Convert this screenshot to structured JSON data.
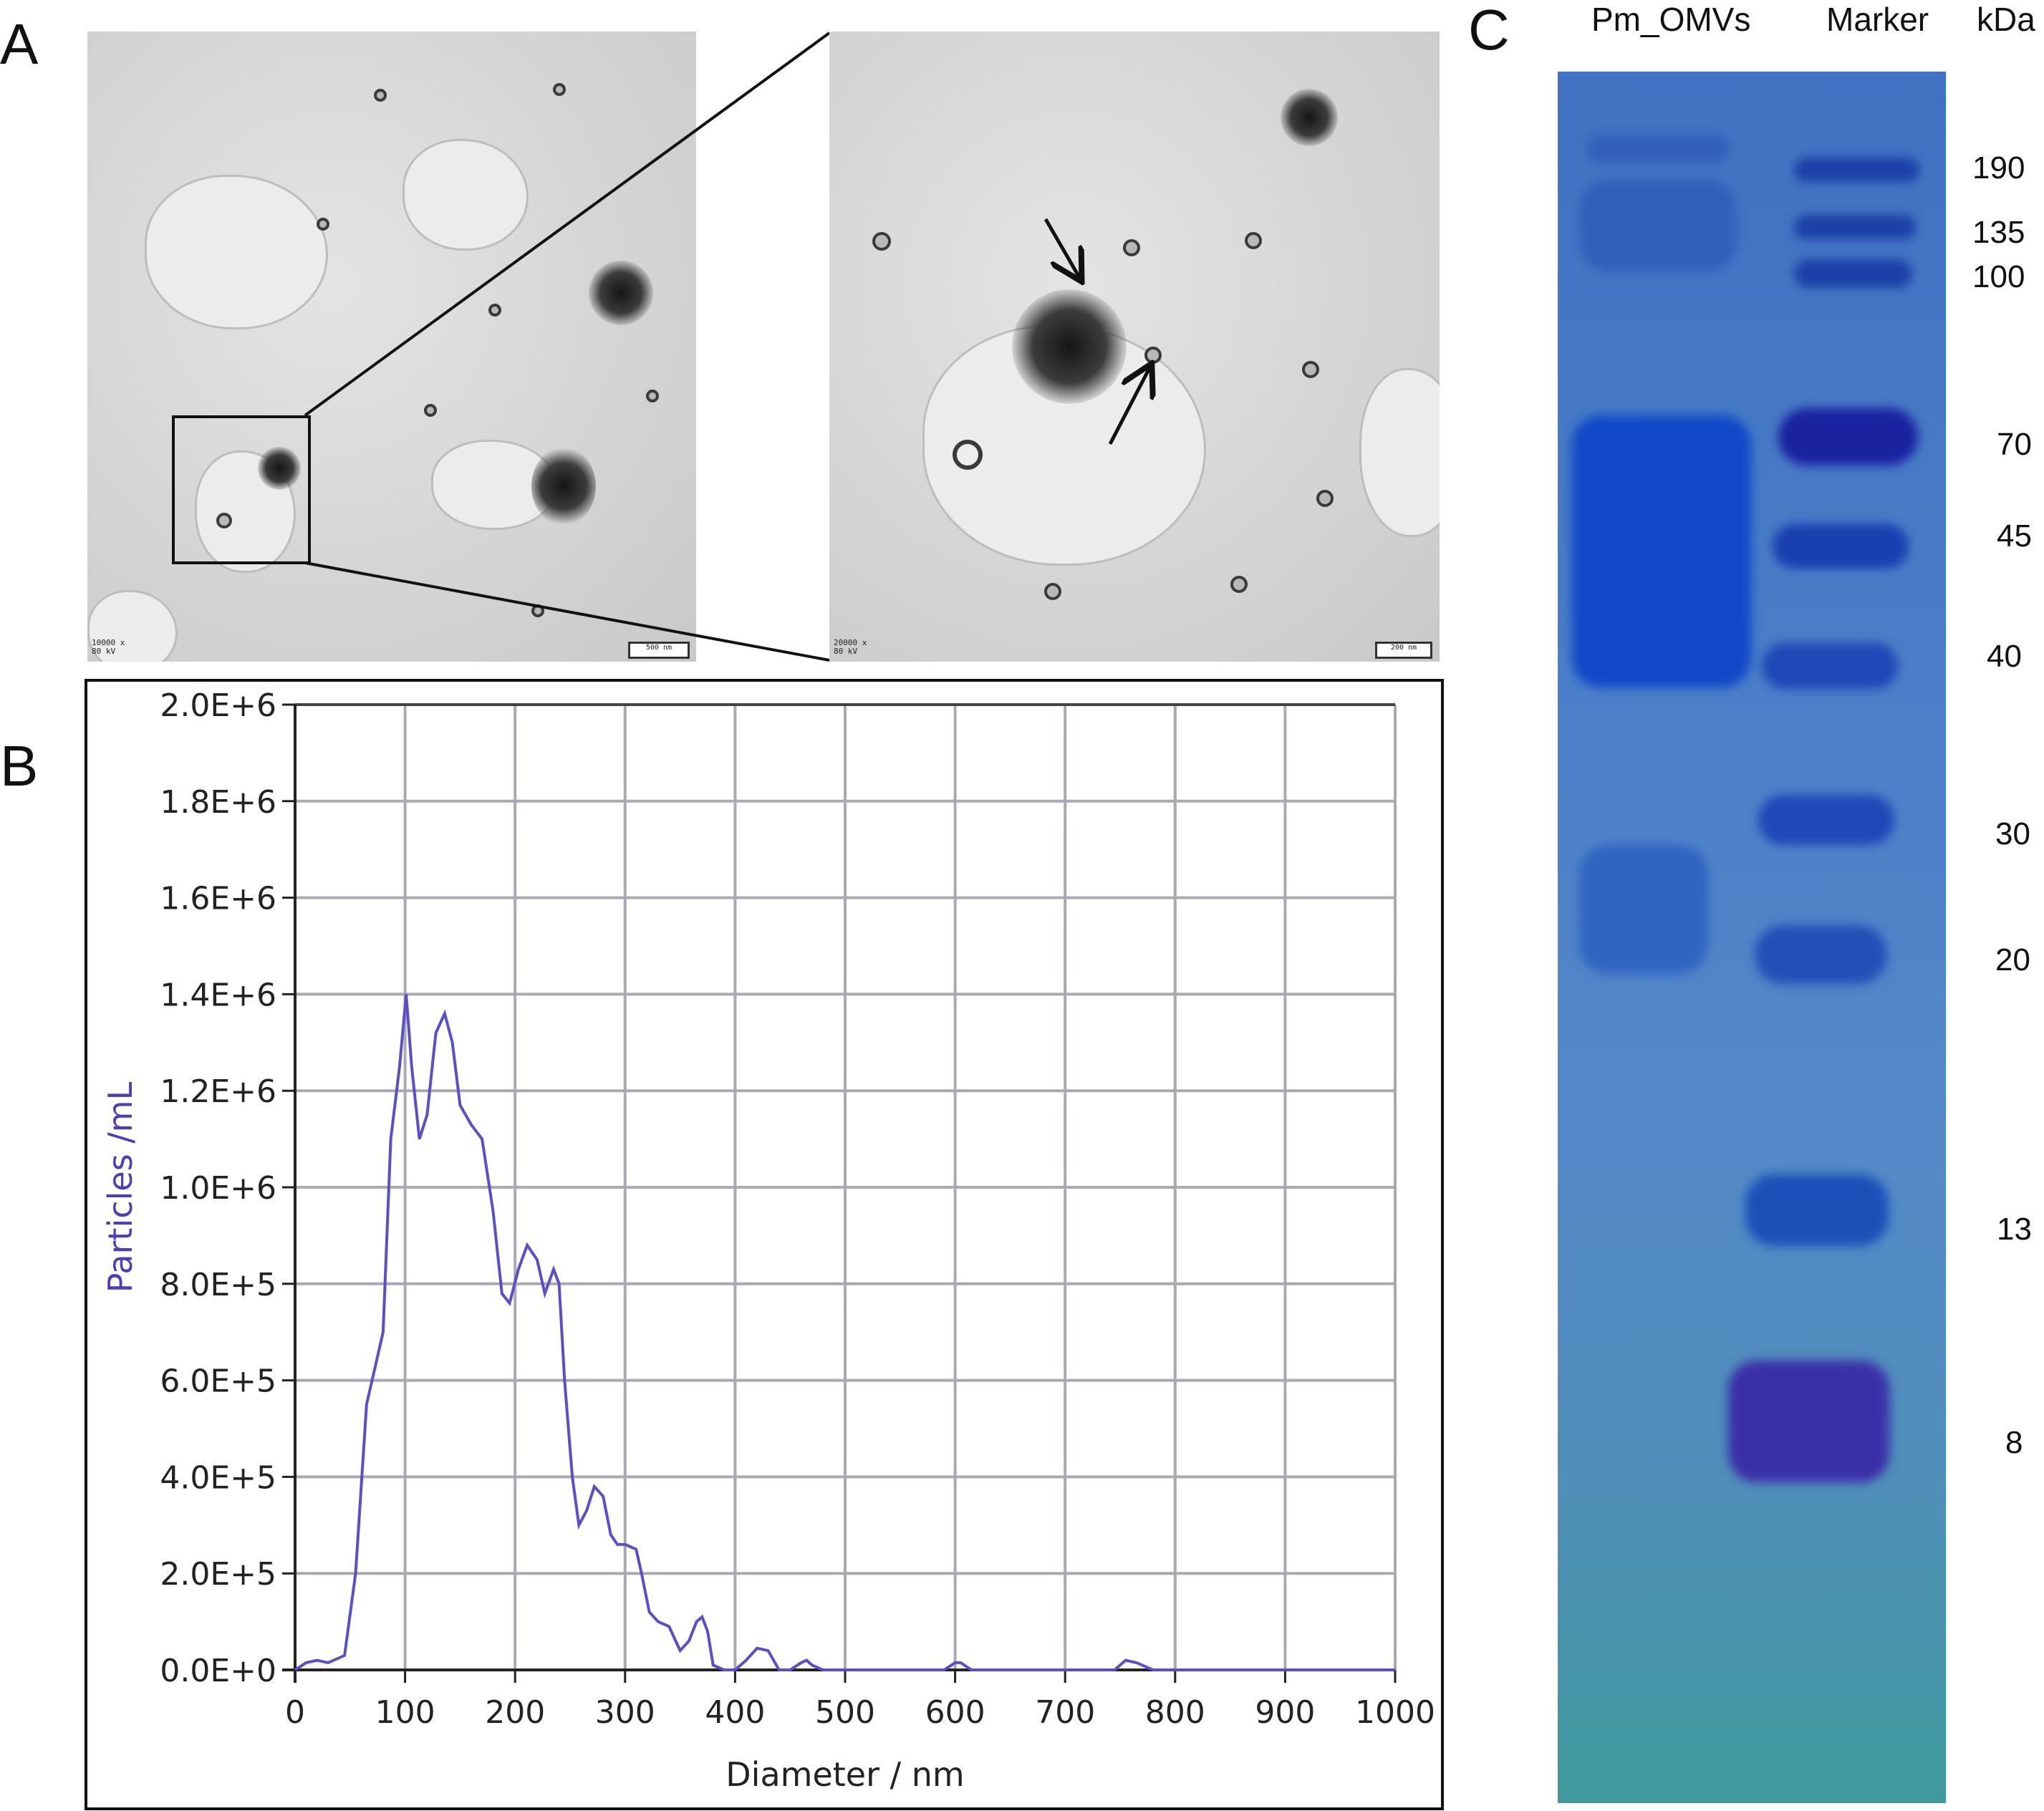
{
  "figure": {
    "panel_labels": {
      "a": "A",
      "b": "B",
      "c": "C"
    }
  },
  "panel_a": {
    "overview": {
      "magnification": "10000 x",
      "voltage": "80 kV",
      "scalebar": "500 nm"
    },
    "zoom": {
      "magnification": "20000 x",
      "voltage": "80 kV",
      "scalebar": "200 nm"
    }
  },
  "panel_c": {
    "lane_labels": [
      "Pm_OMVs",
      "Marker",
      "kDa"
    ],
    "marker_kda": [
      "190",
      "135",
      "100",
      "70",
      "45",
      "40",
      "30",
      "20",
      "13",
      "8"
    ]
  },
  "chart_data": {
    "type": "line",
    "xlabel": "Diameter / nm",
    "ylabel": "Particles /mL",
    "xlim": [
      0,
      1000
    ],
    "ylim": [
      0,
      2000000
    ],
    "grid": true,
    "line_color": "#5a4fc9",
    "x_ticks": [
      "0",
      "100",
      "200",
      "300",
      "400",
      "500",
      "600",
      "700",
      "800",
      "900",
      "1000"
    ],
    "y_ticks": [
      "0.0E+0",
      "2.0E+5",
      "4.0E+5",
      "6.0E+5",
      "8.0E+5",
      "1.0E+6",
      "1.2E+6",
      "1.4E+6",
      "1.6E+6",
      "1.8E+6",
      "2.0E+6"
    ],
    "series": [
      {
        "x": [
          0,
          10,
          20,
          30,
          45,
          55,
          65,
          72,
          80,
          87,
          95,
          101,
          106,
          113,
          120,
          128,
          136,
          143,
          150,
          160,
          170,
          180,
          188,
          195,
          203,
          211,
          220,
          227,
          235,
          240,
          245,
          252,
          258,
          265,
          272,
          280,
          287,
          293,
          300,
          310,
          315,
          322,
          330,
          340,
          350,
          358,
          365,
          370,
          375,
          380,
          390,
          400,
          410,
          420,
          430,
          440,
          450,
          460,
          465,
          470,
          480,
          500,
          550,
          590,
          600,
          605,
          615,
          650,
          700,
          745,
          755,
          765,
          780,
          850,
          900,
          950,
          1000
        ],
        "y": [
          0,
          15000,
          20000,
          15000,
          30000,
          200000,
          550000,
          620000,
          700000,
          1100000,
          1250000,
          1400000,
          1250000,
          1100000,
          1150000,
          1320000,
          1360000,
          1300000,
          1170000,
          1130000,
          1100000,
          950000,
          780000,
          760000,
          830000,
          880000,
          850000,
          780000,
          830000,
          800000,
          600000,
          400000,
          300000,
          330000,
          380000,
          360000,
          280000,
          260000,
          260000,
          250000,
          200000,
          120000,
          100000,
          90000,
          40000,
          60000,
          100000,
          110000,
          80000,
          10000,
          0,
          0,
          20000,
          45000,
          40000,
          0,
          0,
          15000,
          20000,
          10000,
          0,
          0,
          0,
          0,
          15000,
          15000,
          0,
          0,
          0,
          0,
          20000,
          15000,
          0,
          0,
          0,
          0,
          0
        ]
      }
    ]
  }
}
